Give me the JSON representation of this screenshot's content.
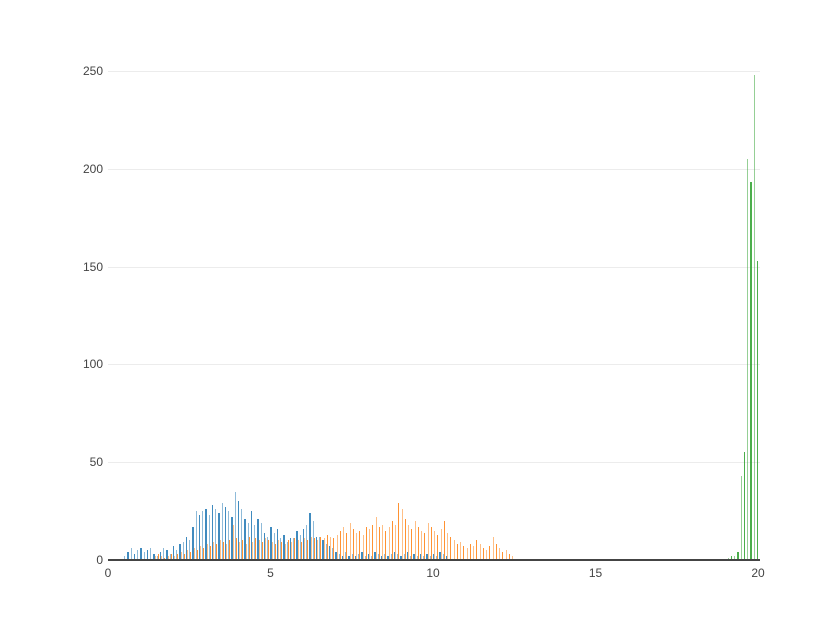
{
  "figure": {
    "background": "#ffffff",
    "axis_color": "#444444",
    "grid_color": "#ececec",
    "tick_label_color": "#444444"
  },
  "chart_data": {
    "type": "bar",
    "subtype": "grouped-histogram",
    "title": "",
    "xlabel": "",
    "ylabel": "",
    "xlim": [
      0,
      20.1
    ],
    "ylim": [
      0,
      265
    ],
    "x_ticks": [
      0,
      5,
      10,
      15,
      20
    ],
    "y_ticks": [
      0,
      50,
      100,
      150,
      200,
      250
    ],
    "grid": "horizontal",
    "legend_position": "none",
    "series": [
      {
        "name": "blue",
        "color": "#1f77b4",
        "bin_start": 0.5,
        "bin_size": 0.1,
        "values": [
          2,
          4,
          6,
          3,
          5,
          6,
          4,
          5,
          6,
          3,
          2,
          4,
          6,
          5,
          3,
          7,
          5,
          8,
          9,
          12,
          10,
          17,
          25,
          23,
          25,
          26,
          23,
          28,
          26,
          24,
          29,
          27,
          25,
          22,
          35,
          30,
          26,
          21,
          19,
          25,
          18,
          21,
          19,
          14,
          12,
          17,
          14,
          16,
          11,
          13,
          9,
          11,
          11,
          15,
          13,
          16,
          18,
          24,
          20,
          12,
          12,
          10,
          8,
          7,
          6,
          4,
          3,
          2,
          4,
          2,
          3,
          2,
          3,
          4,
          2,
          3,
          2,
          4,
          3,
          2,
          3,
          2,
          3,
          4,
          3,
          2,
          3,
          4,
          2,
          3,
          2,
          3,
          2,
          3,
          2,
          3,
          2,
          4,
          3,
          2
        ]
      },
      {
        "name": "orange",
        "color": "#ff7f0e",
        "bin_start": 1.4,
        "bin_size": 0.1,
        "values": [
          2,
          3,
          2,
          1,
          2,
          3,
          2,
          3,
          4,
          3,
          5,
          4,
          6,
          5,
          7,
          6,
          8,
          7,
          9,
          8,
          10,
          9,
          8,
          10,
          18,
          11,
          9,
          10,
          8,
          12,
          9,
          11,
          10,
          9,
          11,
          10,
          9,
          8,
          10,
          9,
          8,
          10,
          9,
          11,
          10,
          9,
          11,
          10,
          12,
          11,
          10,
          12,
          11,
          13,
          12,
          11,
          13,
          15,
          17,
          14,
          19,
          16,
          14,
          15,
          13,
          17,
          16,
          18,
          22,
          17,
          18,
          15,
          17,
          20,
          18,
          29,
          26,
          21,
          18,
          16,
          20,
          17,
          15,
          14,
          19,
          17,
          15,
          13,
          16,
          20,
          14,
          12,
          10,
          8,
          9,
          7,
          6,
          8,
          7,
          10,
          8,
          6,
          5,
          7,
          12,
          8,
          6,
          4,
          5,
          3,
          2
        ]
      },
      {
        "name": "green",
        "color": "#2ca02c",
        "bin_start": 19.0,
        "bin_size": 0.1,
        "values": [
          1,
          2,
          2,
          4,
          43,
          55,
          205,
          193,
          248,
          153
        ]
      }
    ]
  }
}
